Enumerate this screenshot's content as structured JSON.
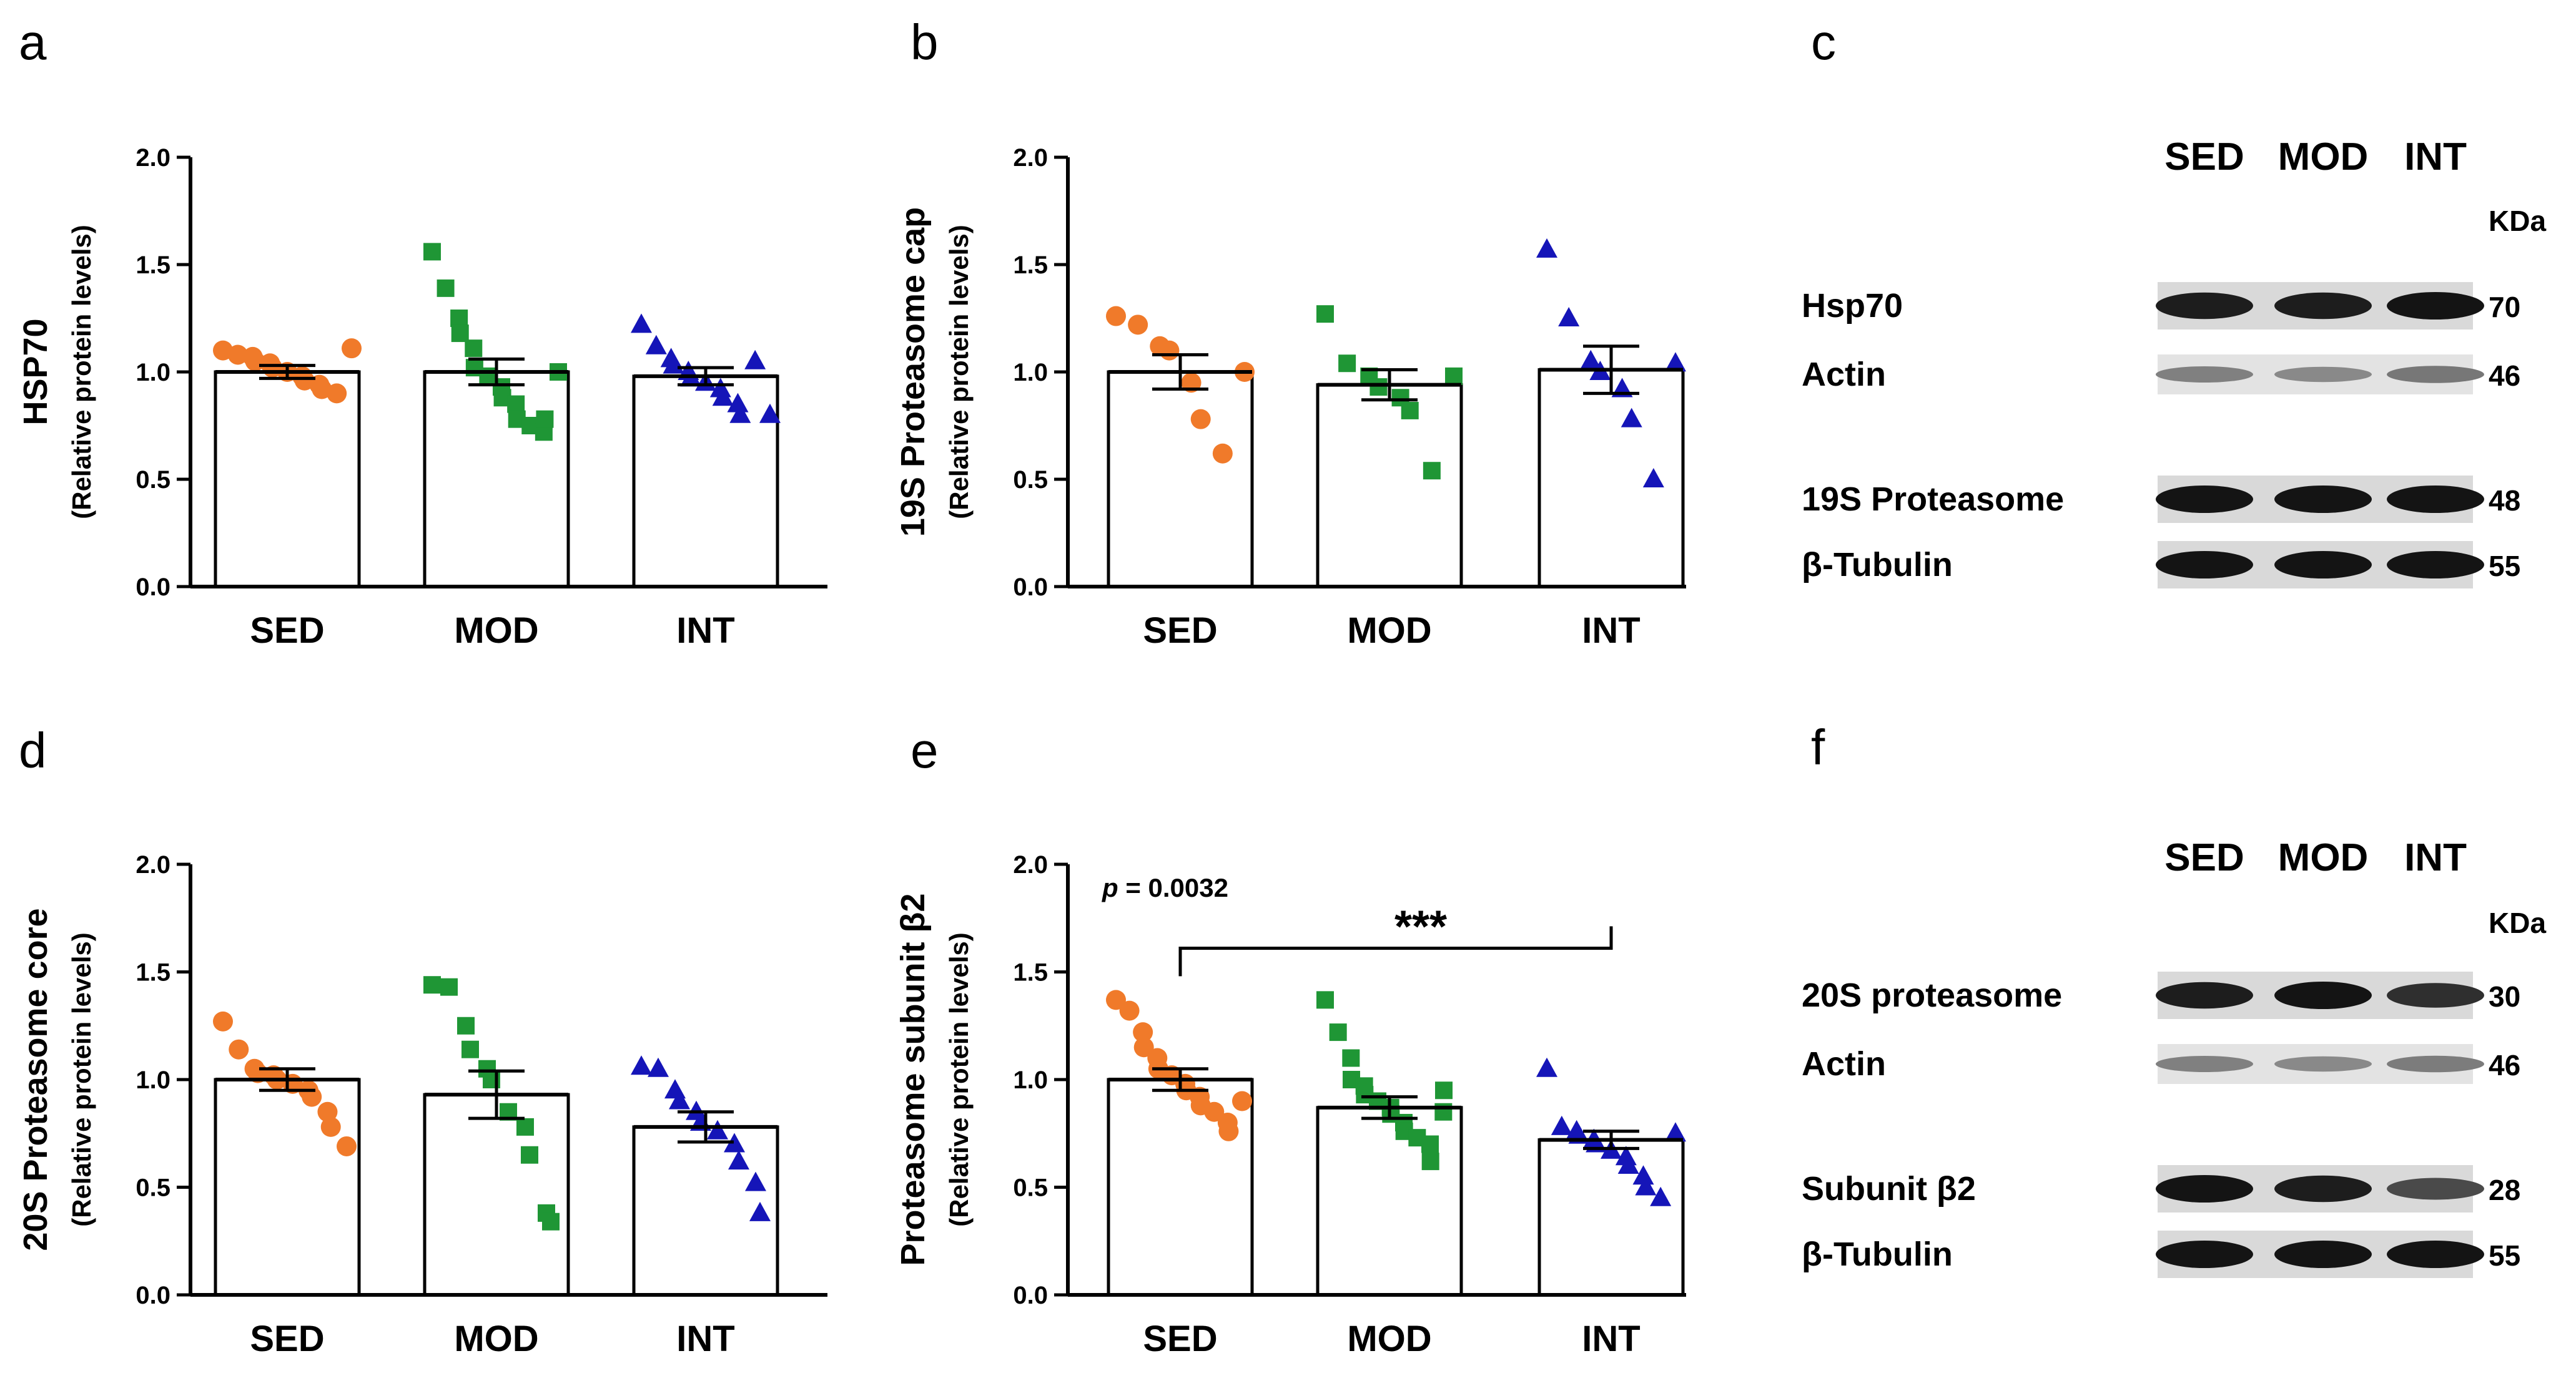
{
  "colors": {
    "SED": "#f07a2a",
    "MOD": "#1f9635",
    "INT": "#1515b8",
    "bar_fill": "#ffffff",
    "axis": "#000000"
  },
  "chart_data": [
    {
      "letter": "a",
      "type": "bar",
      "categories": [
        "SED",
        "MOD",
        "INT"
      ],
      "title": "",
      "ylabel": "HSP70",
      "ylabel_sub": "(Relative protein levels)",
      "ylim": [
        0,
        2.0
      ],
      "yticks": [
        "0.0",
        "0.5",
        "1.0",
        "1.5",
        "2.0"
      ],
      "grid": false,
      "series": [
        {
          "name": "SED",
          "marker": "circle",
          "mean": 1.0,
          "sem": 0.03,
          "points": [
            1.1,
            1.08,
            1.07,
            1.05,
            1.04,
            1.02,
            1.0,
            0.98,
            0.96,
            0.94,
            0.92,
            0.9,
            1.11
          ]
        },
        {
          "name": "MOD",
          "marker": "square",
          "mean": 1.0,
          "sem": 0.06,
          "points": [
            1.56,
            1.39,
            1.25,
            1.18,
            1.11,
            1.02,
            0.98,
            0.93,
            0.88,
            0.85,
            0.78,
            0.75,
            0.72,
            0.78,
            1.0
          ]
        },
        {
          "name": "INT",
          "marker": "triangle",
          "mean": 0.98,
          "sem": 0.04,
          "points": [
            1.22,
            1.12,
            1.06,
            1.03,
            1.0,
            0.97,
            0.95,
            0.92,
            0.88,
            0.85,
            0.8,
            1.05,
            0.8
          ]
        }
      ]
    },
    {
      "letter": "b",
      "type": "bar",
      "categories": [
        "SED",
        "MOD",
        "INT"
      ],
      "title": "",
      "ylabel": "19S Proteasome cap",
      "ylabel_sub": "(Relative protein levels)",
      "ylim": [
        0,
        2.0
      ],
      "yticks": [
        "0.0",
        "0.5",
        "1.0",
        "1.5",
        "2.0"
      ],
      "grid": false,
      "series": [
        {
          "name": "SED",
          "marker": "circle",
          "mean": 1.0,
          "sem": 0.08,
          "points": [
            1.26,
            1.22,
            1.12,
            1.1,
            0.95,
            0.78,
            0.62,
            1.0
          ]
        },
        {
          "name": "MOD",
          "marker": "square",
          "mean": 0.94,
          "sem": 0.07,
          "points": [
            1.27,
            1.04,
            0.98,
            0.93,
            0.88,
            0.82,
            0.54,
            0.98
          ]
        },
        {
          "name": "INT",
          "marker": "triangle",
          "mean": 1.01,
          "sem": 0.11,
          "points": [
            1.57,
            1.25,
            1.05,
            1.0,
            0.92,
            0.78,
            0.5,
            1.04
          ]
        }
      ]
    },
    {
      "letter": "d",
      "type": "bar",
      "categories": [
        "SED",
        "MOD",
        "INT"
      ],
      "title": "",
      "ylabel": "20S Proteasome core",
      "ylabel_sub": "(Relative protein levels)",
      "ylim": [
        0,
        2.0
      ],
      "yticks": [
        "0.0",
        "0.5",
        "1.0",
        "1.5",
        "2.0"
      ],
      "grid": false,
      "series": [
        {
          "name": "SED",
          "marker": "circle",
          "mean": 1.0,
          "sem": 0.05,
          "points": [
            1.27,
            1.14,
            1.05,
            1.03,
            1.02,
            1.0,
            0.98,
            0.95,
            0.92,
            0.85,
            0.78,
            0.69
          ]
        },
        {
          "name": "MOD",
          "marker": "square",
          "mean": 0.93,
          "sem": 0.11,
          "points": [
            1.44,
            1.43,
            1.25,
            1.14,
            1.05,
            1.0,
            0.85,
            0.78,
            0.65,
            0.38,
            0.34
          ]
        },
        {
          "name": "INT",
          "marker": "triangle",
          "mean": 0.78,
          "sem": 0.07,
          "points": [
            1.06,
            1.05,
            0.95,
            0.9,
            0.85,
            0.8,
            0.76,
            0.7,
            0.62,
            0.52,
            0.38
          ]
        }
      ]
    },
    {
      "letter": "e",
      "type": "bar",
      "categories": [
        "SED",
        "MOD",
        "INT"
      ],
      "title": "",
      "ylabel": "Proteasome subunit β2",
      "ylabel_sub": "(Relative protein levels)",
      "ylim": [
        0,
        2.0
      ],
      "yticks": [
        "0.0",
        "0.5",
        "1.0",
        "1.5",
        "2.0"
      ],
      "grid": false,
      "annotation": {
        "p_label": "p",
        "p_text": "= 0.0032",
        "significance": "***",
        "from": "SED",
        "to": "INT"
      },
      "series": [
        {
          "name": "SED",
          "marker": "circle",
          "mean": 1.0,
          "sem": 0.05,
          "points": [
            1.37,
            1.32,
            1.22,
            1.15,
            1.1,
            1.05,
            1.02,
            0.98,
            0.95,
            0.92,
            0.88,
            0.85,
            0.8,
            0.76,
            0.9
          ]
        },
        {
          "name": "MOD",
          "marker": "square",
          "mean": 0.87,
          "sem": 0.05,
          "points": [
            1.37,
            1.22,
            1.1,
            1.0,
            0.97,
            0.93,
            0.9,
            0.87,
            0.84,
            0.8,
            0.76,
            0.73,
            0.7,
            0.62,
            0.85,
            0.95
          ]
        },
        {
          "name": "INT",
          "marker": "triangle",
          "mean": 0.72,
          "sem": 0.04,
          "points": [
            1.05,
            0.78,
            0.76,
            0.74,
            0.72,
            0.7,
            0.67,
            0.64,
            0.6,
            0.55,
            0.5,
            0.45,
            0.75
          ]
        }
      ]
    }
  ],
  "blots": [
    {
      "letter": "c",
      "lanes": [
        "SED",
        "MOD",
        "INT"
      ],
      "unit": "KDa",
      "bands": [
        {
          "label": "Hsp70",
          "kda": "70",
          "intensity": [
            0.95,
            0.95,
            1.0
          ]
        },
        {
          "label": "Actin",
          "kda": "46",
          "intensity": [
            0.4,
            0.35,
            0.45
          ]
        },
        {
          "label": "19S Proteasome",
          "kda": "48",
          "intensity": [
            1.0,
            1.0,
            1.0
          ]
        },
        {
          "label": "β-Tubulin",
          "kda": "55",
          "intensity": [
            1.0,
            1.0,
            1.0
          ]
        }
      ]
    },
    {
      "letter": "f",
      "lanes": [
        "SED",
        "MOD",
        "INT"
      ],
      "unit": "KDa",
      "bands": [
        {
          "label": "20S proteasome",
          "kda": "30",
          "intensity": [
            0.95,
            1.0,
            0.85
          ]
        },
        {
          "label": "Actin",
          "kda": "46",
          "intensity": [
            0.4,
            0.35,
            0.42
          ]
        },
        {
          "label": "Subunit β2",
          "kda": "28",
          "intensity": [
            1.0,
            0.95,
            0.7
          ]
        },
        {
          "label": "β-Tubulin",
          "kda": "55",
          "intensity": [
            1.0,
            1.0,
            1.0
          ]
        }
      ]
    }
  ]
}
